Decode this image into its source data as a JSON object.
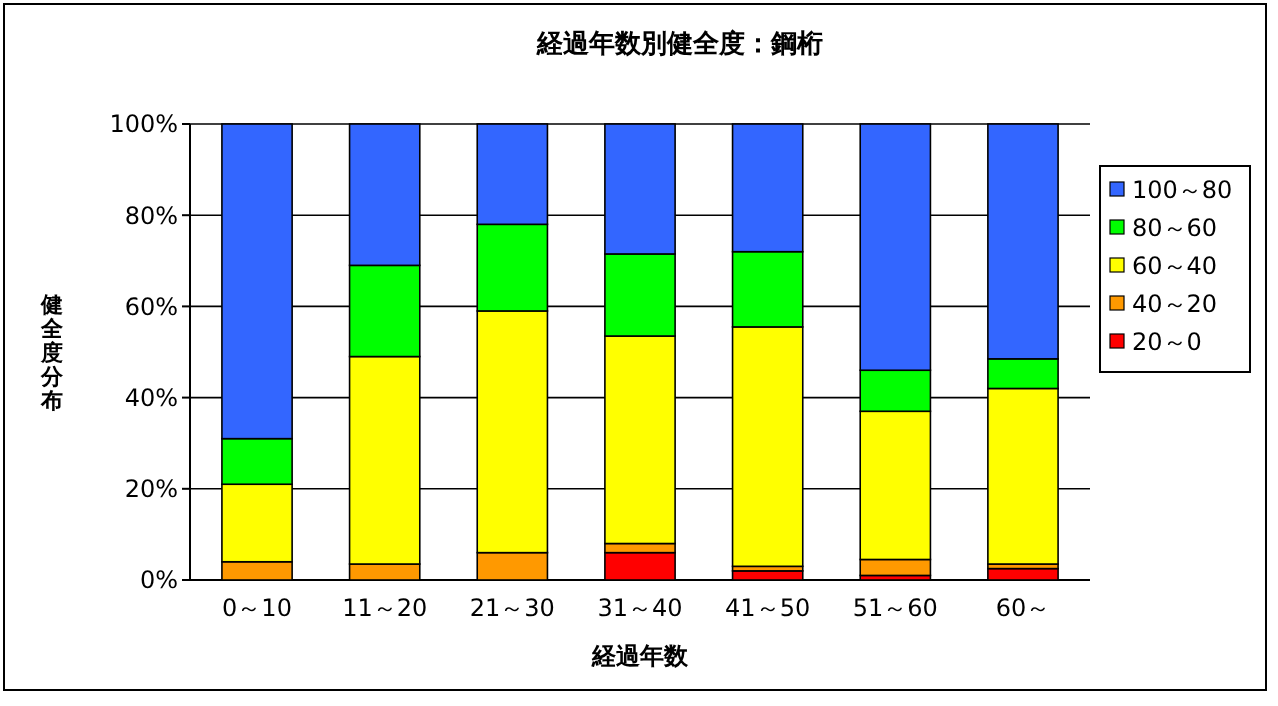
{
  "chart_data": {
    "type": "bar",
    "title": "経過年数別健全度：鋼桁",
    "xlabel": "経過年数",
    "ylabel": "健全度分布",
    "categories": [
      "0～10",
      "11～20",
      "21～30",
      "31～40",
      "41～50",
      "51～60",
      "60～"
    ],
    "stacked": true,
    "ylim": [
      0,
      100
    ],
    "yticks": [
      {
        "value": 0,
        "label": "0%"
      },
      {
        "value": 20,
        "label": "20%"
      },
      {
        "value": 40,
        "label": "40%"
      },
      {
        "value": 60,
        "label": "60%"
      },
      {
        "value": 80,
        "label": "80%"
      },
      {
        "value": 100,
        "label": "100%"
      }
    ],
    "grid": "y",
    "legend": "right",
    "series": [
      {
        "name": "20～0",
        "color": "#ff0000",
        "values": [
          0,
          0,
          0,
          6,
          2,
          1,
          2.5
        ]
      },
      {
        "name": "40～20",
        "color": "#ff9900",
        "values": [
          4,
          3.5,
          6,
          2,
          1,
          3.5,
          1
        ]
      },
      {
        "name": "60～40",
        "color": "#ffff00",
        "values": [
          17,
          45.5,
          53,
          45.5,
          52.5,
          32.5,
          38.5
        ]
      },
      {
        "name": "80～60",
        "color": "#00ff00",
        "values": [
          10,
          20,
          19,
          18,
          16.5,
          9,
          6.5
        ]
      },
      {
        "name": "100～80",
        "color": "#3366ff",
        "values": [
          69,
          31,
          22,
          28.5,
          28,
          54,
          51.5
        ]
      }
    ]
  }
}
